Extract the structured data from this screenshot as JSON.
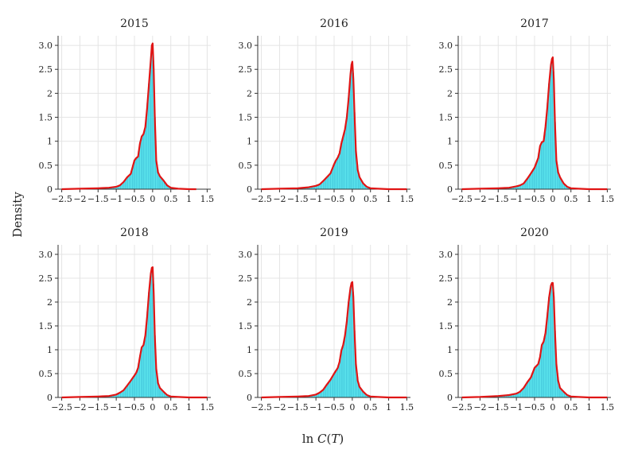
{
  "figure": {
    "ylabel": "Density",
    "xlabel_prefix": "ln ",
    "xlabel_italic": "C",
    "xlabel_open": "(",
    "xlabel_arg": "T",
    "xlabel_close": ")"
  },
  "colors": {
    "hist_fill": "#5fe9f0",
    "hist_stroke": "#29a9c9",
    "density": "#e01515",
    "grid": "#e4e4e4"
  },
  "chart_data": [
    {
      "type": "bar",
      "title": "2015",
      "xlim": [
        -2.6,
        1.6
      ],
      "ylim": [
        0,
        3.2
      ],
      "xticks": [
        -2.5,
        -2,
        -1.5,
        -1,
        -0.5,
        0,
        0.5,
        1,
        1.5
      ],
      "xtick_labels": [
        "−2.5",
        "−2",
        "−1.5",
        "−1",
        "−0.5",
        "0",
        "0.5",
        "1",
        "1.5"
      ],
      "yticks": [
        0,
        0.5,
        1,
        1.5,
        2,
        2.5,
        3
      ],
      "ytick_labels": [
        "0",
        "0.5",
        "1",
        "1.5",
        "2",
        "2.5",
        "3.0"
      ],
      "density_x": [
        -2.5,
        -2.0,
        -1.5,
        -1.2,
        -1.0,
        -0.9,
        -0.8,
        -0.7,
        -0.6,
        -0.5,
        -0.45,
        -0.4,
        -0.35,
        -0.3,
        -0.25,
        -0.2,
        -0.15,
        -0.1,
        -0.05,
        -0.02,
        0.0,
        0.03,
        0.06,
        0.1,
        0.15,
        0.2,
        0.3,
        0.4,
        0.5,
        0.7,
        1.0,
        1.2
      ],
      "density_y": [
        0.0,
        0.01,
        0.02,
        0.03,
        0.05,
        0.08,
        0.15,
        0.25,
        0.32,
        0.6,
        0.65,
        0.68,
        0.95,
        1.1,
        1.15,
        1.3,
        1.7,
        2.2,
        2.7,
        3.0,
        3.04,
        2.5,
        1.5,
        0.6,
        0.35,
        0.27,
        0.18,
        0.08,
        0.03,
        0.01,
        0.0,
        0.0
      ]
    },
    {
      "type": "bar",
      "title": "2016",
      "xlim": [
        -2.6,
        1.6
      ],
      "ylim": [
        0,
        3.2
      ],
      "xticks": [
        -2.5,
        -2,
        -1.5,
        -1,
        -0.5,
        0,
        0.5,
        1,
        1.5
      ],
      "xtick_labels": [
        "−2.5",
        "−2",
        "−1.5",
        "−1",
        "−0.5",
        "0",
        "0.5",
        "1",
        "1.5"
      ],
      "yticks": [
        0,
        0.5,
        1,
        1.5,
        2,
        2.5,
        3
      ],
      "ytick_labels": [
        "0",
        "0.5",
        "1",
        "1.5",
        "2",
        "2.5",
        "3.0"
      ],
      "density_x": [
        -2.5,
        -2.0,
        -1.5,
        -1.2,
        -1.0,
        -0.9,
        -0.8,
        -0.7,
        -0.6,
        -0.5,
        -0.45,
        -0.4,
        -0.35,
        -0.3,
        -0.25,
        -0.2,
        -0.15,
        -0.1,
        -0.05,
        -0.02,
        0.0,
        0.03,
        0.06,
        0.1,
        0.15,
        0.2,
        0.3,
        0.4,
        0.5,
        0.7,
        1.0,
        1.5
      ],
      "density_y": [
        0.0,
        0.01,
        0.02,
        0.04,
        0.07,
        0.1,
        0.17,
        0.25,
        0.33,
        0.52,
        0.6,
        0.66,
        0.75,
        0.95,
        1.1,
        1.25,
        1.5,
        1.9,
        2.4,
        2.6,
        2.66,
        2.3,
        1.6,
        0.8,
        0.4,
        0.25,
        0.12,
        0.05,
        0.02,
        0.01,
        0.0,
        0.0
      ]
    },
    {
      "type": "bar",
      "title": "2017",
      "xlim": [
        -2.6,
        1.6
      ],
      "ylim": [
        0,
        3.2
      ],
      "xticks": [
        -2.5,
        -2,
        -1.5,
        -1,
        -0.5,
        0,
        0.5,
        1,
        1.5
      ],
      "xtick_labels": [
        "−2.5",
        "−2",
        "−1.5",
        "−1",
        "−0.5",
        "0",
        "0.5",
        "1",
        "1.5"
      ],
      "yticks": [
        0,
        0.5,
        1,
        1.5,
        2,
        2.5,
        3
      ],
      "ytick_labels": [
        "0",
        "0.5",
        "1",
        "1.5",
        "2",
        "2.5",
        "3.0"
      ],
      "density_x": [
        -2.5,
        -2.0,
        -1.5,
        -1.2,
        -1.0,
        -0.9,
        -0.8,
        -0.7,
        -0.6,
        -0.5,
        -0.45,
        -0.4,
        -0.35,
        -0.3,
        -0.25,
        -0.2,
        -0.15,
        -0.1,
        -0.05,
        -0.02,
        0.0,
        0.03,
        0.06,
        0.1,
        0.15,
        0.2,
        0.3,
        0.4,
        0.5,
        0.7,
        1.0,
        1.5
      ],
      "density_y": [
        0.0,
        0.01,
        0.02,
        0.03,
        0.06,
        0.08,
        0.12,
        0.22,
        0.33,
        0.45,
        0.55,
        0.65,
        0.9,
        0.98,
        1.0,
        1.3,
        1.7,
        2.2,
        2.6,
        2.72,
        2.75,
        2.3,
        1.4,
        0.6,
        0.35,
        0.25,
        0.12,
        0.05,
        0.02,
        0.01,
        0.0,
        0.0
      ]
    },
    {
      "type": "bar",
      "title": "2018",
      "xlim": [
        -2.6,
        1.6
      ],
      "ylim": [
        0,
        3.2
      ],
      "xticks": [
        -2.5,
        -2,
        -1.5,
        -1,
        -0.5,
        0,
        0.5,
        1,
        1.5
      ],
      "xtick_labels": [
        "−2.5",
        "−2",
        "−1.5",
        "−1",
        "−0.5",
        "0",
        "0.5",
        "1",
        "1.5"
      ],
      "yticks": [
        0,
        0.5,
        1,
        1.5,
        2,
        2.5,
        3
      ],
      "ytick_labels": [
        "0",
        "0.5",
        "1",
        "1.5",
        "2",
        "2.5",
        "3.0"
      ],
      "density_x": [
        -2.5,
        -2.0,
        -1.5,
        -1.2,
        -1.0,
        -0.9,
        -0.8,
        -0.7,
        -0.6,
        -0.5,
        -0.45,
        -0.4,
        -0.35,
        -0.3,
        -0.25,
        -0.2,
        -0.15,
        -0.1,
        -0.05,
        -0.02,
        0.0,
        0.03,
        0.06,
        0.1,
        0.15,
        0.2,
        0.3,
        0.4,
        0.5,
        0.7,
        1.0,
        1.5
      ],
      "density_y": [
        0.0,
        0.01,
        0.02,
        0.03,
        0.06,
        0.1,
        0.15,
        0.25,
        0.35,
        0.46,
        0.52,
        0.62,
        0.85,
        1.05,
        1.1,
        1.3,
        1.7,
        2.2,
        2.6,
        2.72,
        2.73,
        2.2,
        1.3,
        0.6,
        0.3,
        0.2,
        0.12,
        0.05,
        0.02,
        0.01,
        0.0,
        0.0
      ]
    },
    {
      "type": "bar",
      "title": "2019",
      "xlim": [
        -2.6,
        1.6
      ],
      "ylim": [
        0,
        3.2
      ],
      "xticks": [
        -2.5,
        -2,
        -1.5,
        -1,
        -0.5,
        0,
        0.5,
        1,
        1.5
      ],
      "xtick_labels": [
        "−2.5",
        "−2",
        "−1.5",
        "−1",
        "−0.5",
        "0",
        "0.5",
        "1",
        "1.5"
      ],
      "yticks": [
        0,
        0.5,
        1,
        1.5,
        2,
        2.5,
        3
      ],
      "ytick_labels": [
        "0",
        "0.5",
        "1",
        "1.5",
        "2",
        "2.5",
        "3.0"
      ],
      "density_x": [
        -2.5,
        -2.0,
        -1.5,
        -1.2,
        -1.0,
        -0.9,
        -0.8,
        -0.7,
        -0.6,
        -0.5,
        -0.45,
        -0.4,
        -0.35,
        -0.3,
        -0.25,
        -0.2,
        -0.15,
        -0.1,
        -0.05,
        -0.02,
        0.0,
        0.03,
        0.06,
        0.1,
        0.15,
        0.2,
        0.3,
        0.4,
        0.5,
        0.7,
        1.0,
        1.5
      ],
      "density_y": [
        0.0,
        0.01,
        0.02,
        0.03,
        0.06,
        0.1,
        0.16,
        0.27,
        0.37,
        0.5,
        0.56,
        0.62,
        0.75,
        0.98,
        1.1,
        1.3,
        1.6,
        2.0,
        2.3,
        2.4,
        2.42,
        2.1,
        1.4,
        0.7,
        0.35,
        0.22,
        0.12,
        0.05,
        0.02,
        0.01,
        0.0,
        0.0
      ]
    },
    {
      "type": "bar",
      "title": "2020",
      "xlim": [
        -2.6,
        1.6
      ],
      "ylim": [
        0,
        3.2
      ],
      "xticks": [
        -2.5,
        -2,
        -1.5,
        -1,
        -0.5,
        0,
        0.5,
        1,
        1.5
      ],
      "xtick_labels": [
        "−2.5",
        "−2",
        "−1.5",
        "−1",
        "−0.5",
        "0",
        "0.5",
        "1",
        "1.5"
      ],
      "yticks": [
        0,
        0.5,
        1,
        1.5,
        2,
        2.5,
        3
      ],
      "ytick_labels": [
        "0",
        "0.5",
        "1",
        "1.5",
        "2",
        "2.5",
        "3.0"
      ],
      "density_x": [
        -2.5,
        -2.0,
        -1.5,
        -1.2,
        -1.0,
        -0.9,
        -0.8,
        -0.7,
        -0.6,
        -0.5,
        -0.45,
        -0.4,
        -0.35,
        -0.3,
        -0.25,
        -0.2,
        -0.15,
        -0.1,
        -0.05,
        -0.02,
        0.0,
        0.03,
        0.06,
        0.1,
        0.15,
        0.2,
        0.3,
        0.4,
        0.5,
        0.7,
        1.0,
        1.5
      ],
      "density_y": [
        0.0,
        0.01,
        0.03,
        0.05,
        0.08,
        0.12,
        0.2,
        0.32,
        0.42,
        0.62,
        0.66,
        0.7,
        0.85,
        1.1,
        1.17,
        1.35,
        1.7,
        2.1,
        2.35,
        2.4,
        2.4,
        2.1,
        1.4,
        0.7,
        0.35,
        0.2,
        0.12,
        0.05,
        0.02,
        0.01,
        0.0,
        0.0
      ]
    }
  ]
}
